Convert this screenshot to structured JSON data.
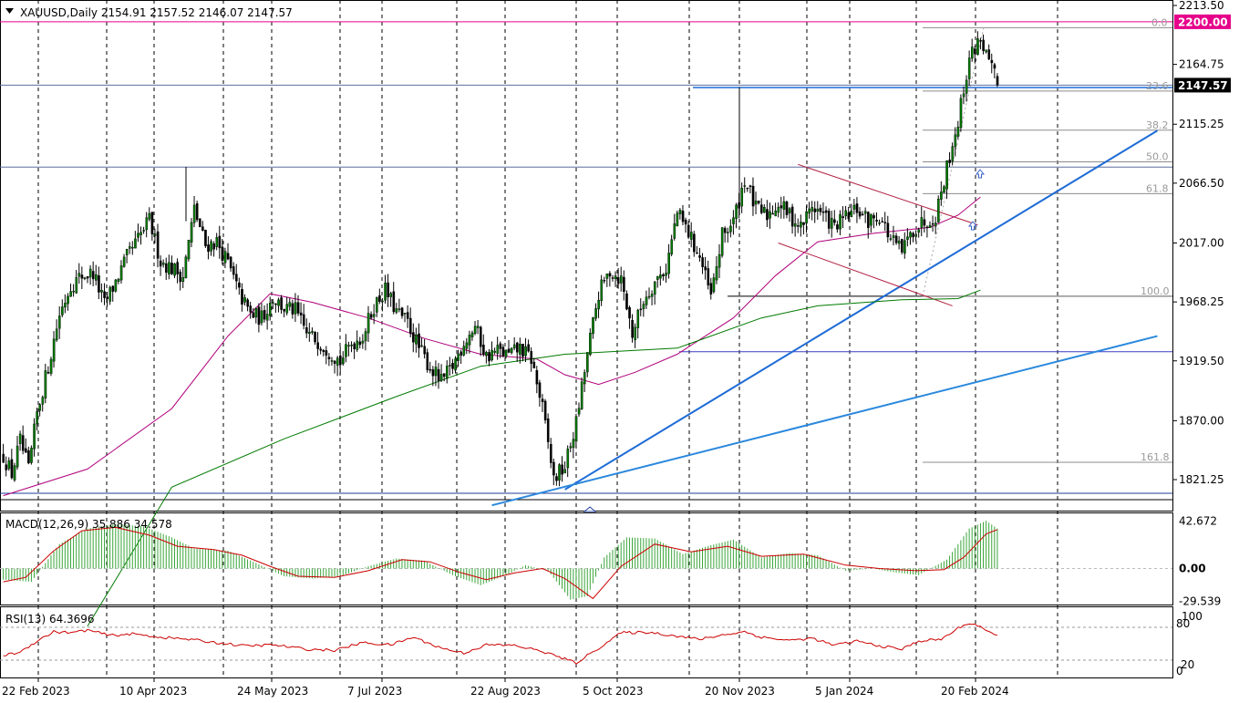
{
  "symbol_header": {
    "menu_icon": "triangle-down-icon",
    "text": "XAUUSD,Daily  2154.91 2157.52 2146.07 2147.57"
  },
  "chart_data": [
    {
      "type": "candlestick",
      "title": "XAUUSD,Daily",
      "ohlc_last": {
        "open": 2154.91,
        "high": 2157.52,
        "low": 2146.07,
        "close": 2147.57
      },
      "x_tick_labels": [
        "22 Feb 2023",
        "10 Apr 2023",
        "24 May 2023",
        "7 Jul 2023",
        "22 Aug 2023",
        "5 Oct 2023",
        "20 Nov 2023",
        "5 Jan 2024",
        "20 Feb 2024"
      ],
      "y_tick_labels": [
        "2213.50",
        "2164.75",
        "2115.25",
        "2066.50",
        "2017.00",
        "1968.25",
        "1919.50",
        "1870.00",
        "1821.25"
      ],
      "ylim": [
        1808,
        2213.5
      ],
      "price_labels": [
        {
          "text": "2200.00",
          "value": 2200.0,
          "color": "#e6008a"
        },
        {
          "text": "2147.57",
          "value": 2147.57,
          "color": "#000000"
        }
      ],
      "fibonacci": {
        "high": 2195.1,
        "low": 1973.0,
        "levels": [
          {
            "label": "0.0",
            "value": 2195.1
          },
          {
            "label": "23.6",
            "value": 2142.7
          },
          {
            "label": "38.2",
            "value": 2110.3
          },
          {
            "label": "50.0",
            "value": 2084.1
          },
          {
            "label": "61.8",
            "value": 2057.8
          },
          {
            "label": "100.0",
            "value": 1973.0
          },
          {
            "label": "161.8",
            "value": 1835.6
          }
        ]
      },
      "horizontal_lines": [
        2147.57,
        2079.8,
        1973.0,
        1927.0,
        1816.0,
        1810.5
      ],
      "series": [
        {
          "kind": "ohlc",
          "up_color": "#007a00",
          "down_color": "#000000",
          "anchors": [
            [
              0,
              1841
            ],
            [
              3,
              1826
            ],
            [
              6,
              1853
            ],
            [
              9,
              1829
            ],
            [
              12,
              1876
            ],
            [
              16,
              1915
            ],
            [
              20,
              1958
            ],
            [
              24,
              1982
            ],
            [
              28,
              1990
            ],
            [
              32,
              1992
            ],
            [
              36,
              1966
            ],
            [
              40,
              1985
            ],
            [
              44,
              2005
            ],
            [
              48,
              2020
            ],
            [
              52,
              2036
            ],
            [
              56,
              2002
            ],
            [
              60,
              1996
            ],
            [
              64,
              1990
            ],
            [
              68,
              2045
            ],
            [
              72,
              2015
            ],
            [
              76,
              2018
            ],
            [
              80,
              2000
            ],
            [
              84,
              1975
            ],
            [
              88,
              1958
            ],
            [
              92,
              1955
            ],
            [
              96,
              1972
            ],
            [
              100,
              1963
            ],
            [
              104,
              1961
            ],
            [
              108,
              1942
            ],
            [
              112,
              1936
            ],
            [
              116,
              1928
            ],
            [
              120,
              1919
            ],
            [
              124,
              1934
            ],
            [
              128,
              1940
            ],
            [
              132,
              1965
            ],
            [
              136,
              1978
            ],
            [
              140,
              1960
            ],
            [
              144,
              1951
            ],
            [
              148,
              1930
            ],
            [
              152,
              1914
            ],
            [
              156,
              1902
            ],
            [
              160,
              1915
            ],
            [
              164,
              1935
            ],
            [
              168,
              1948
            ],
            [
              172,
              1923
            ],
            [
              176,
              1928
            ],
            [
              180,
              1924
            ],
            [
              184,
              1930
            ],
            [
              188,
              1921
            ],
            [
              192,
              1880
            ],
            [
              196,
              1822
            ],
            [
              200,
              1832
            ],
            [
              204,
              1868
            ],
            [
              208,
              1925
            ],
            [
              212,
              1975
            ],
            [
              216,
              1994
            ],
            [
              220,
              1987
            ],
            [
              224,
              1942
            ],
            [
              228,
              1970
            ],
            [
              232,
              1985
            ],
            [
              236,
              1996
            ],
            [
              240,
              2042
            ],
            [
              244,
              2025
            ],
            [
              248,
              2005
            ],
            [
              252,
              1972
            ],
            [
              256,
              2023
            ],
            [
              260,
              2035
            ],
            [
              264,
              2070
            ],
            [
              268,
              2045
            ],
            [
              272,
              2040
            ],
            [
              276,
              2050
            ],
            [
              280,
              2040
            ],
            [
              284,
              2030
            ],
            [
              288,
              2048
            ],
            [
              292,
              2040
            ],
            [
              296,
              2030
            ],
            [
              300,
              2038
            ],
            [
              304,
              2045
            ],
            [
              308,
              2035
            ],
            [
              312,
              2040
            ],
            [
              316,
              2020
            ],
            [
              320,
              2010
            ],
            [
              324,
              2028
            ],
            [
              328,
              2035
            ],
            [
              332,
              2040
            ],
            [
              336,
              2080
            ],
            [
              340,
              2118
            ],
            [
              344,
              2170
            ],
            [
              348,
              2187
            ],
            [
              351,
              2165
            ],
            [
              353,
              2154.91
            ],
            [
              354,
              2147.57
            ]
          ]
        },
        {
          "kind": "line",
          "color": "#b0007c",
          "points": [
            [
              0,
              1808
            ],
            [
              30,
              1830
            ],
            [
              60,
              1880
            ],
            [
              80,
              1940
            ],
            [
              95,
              1975
            ],
            [
              110,
              1968
            ],
            [
              130,
              1955
            ],
            [
              150,
              1938
            ],
            [
              170,
              1925
            ],
            [
              190,
              1921
            ],
            [
              200,
              1908
            ],
            [
              212,
              1900
            ],
            [
              225,
              1910
            ],
            [
              240,
              1925
            ],
            [
              260,
              1955
            ],
            [
              275,
              1990
            ],
            [
              290,
              2018
            ],
            [
              310,
              2025
            ],
            [
              330,
              2030
            ],
            [
              340,
              2040
            ],
            [
              348,
              2055
            ]
          ]
        },
        {
          "kind": "line",
          "color": "#007a00",
          "points": [
            [
              30,
              1700
            ],
            [
              60,
              1815
            ],
            [
              100,
              1855
            ],
            [
              140,
              1890
            ],
            [
              170,
              1915
            ],
            [
              200,
              1925
            ],
            [
              240,
              1930
            ],
            [
              270,
              1955
            ],
            [
              290,
              1965
            ],
            [
              320,
              1970
            ],
            [
              340,
              1971
            ],
            [
              348,
              1978
            ]
          ]
        }
      ],
      "trend_lines": [
        {
          "color": "#1e6bd6",
          "from": [
            200,
            1813
          ],
          "to": [
            411,
            2110
          ]
        },
        {
          "color": "#2a88dd",
          "from": [
            174,
            1800
          ],
          "to": [
            411,
            1940
          ]
        },
        {
          "color": "#b22040",
          "from": [
            283,
            2082
          ],
          "to": [
            347,
            2032
          ]
        },
        {
          "color": "#b22040",
          "from": [
            276,
            2017
          ],
          "to": [
            338,
            1965
          ]
        }
      ],
      "markers": [
        "arrow-up-icon",
        "arrow-up-icon",
        "triangle-up-icon"
      ]
    },
    {
      "type": "bar",
      "title": "MACD(12,26,9) 35.886 34.578",
      "y_tick_labels": [
        "42.672",
        "0.00",
        "-29.539"
      ],
      "ylim": [
        -32,
        48
      ],
      "histogram_color": "#3aa53a",
      "signal_color": "#cc0000",
      "histogram": [
        [
          0,
          -10
        ],
        [
          10,
          -12
        ],
        [
          20,
          22
        ],
        [
          30,
          36
        ],
        [
          40,
          40
        ],
        [
          50,
          38
        ],
        [
          60,
          28
        ],
        [
          68,
          18
        ],
        [
          80,
          16
        ],
        [
          90,
          5
        ],
        [
          100,
          -7
        ],
        [
          110,
          -9
        ],
        [
          120,
          -7
        ],
        [
          130,
          2
        ],
        [
          140,
          9
        ],
        [
          150,
          7
        ],
        [
          160,
          -6
        ],
        [
          170,
          -15
        ],
        [
          180,
          -5
        ],
        [
          186,
          3
        ],
        [
          194,
          -2
        ],
        [
          202,
          -28
        ],
        [
          208,
          -25
        ],
        [
          214,
          10
        ],
        [
          222,
          28
        ],
        [
          232,
          27
        ],
        [
          242,
          13
        ],
        [
          252,
          21
        ],
        [
          260,
          26
        ],
        [
          270,
          10
        ],
        [
          280,
          14
        ],
        [
          290,
          12
        ],
        [
          300,
          -2
        ],
        [
          310,
          0
        ],
        [
          316,
          -3
        ],
        [
          326,
          -6
        ],
        [
          336,
          8
        ],
        [
          344,
          36
        ],
        [
          350,
          43
        ],
        [
          354,
          36
        ]
      ],
      "signal": [
        [
          0,
          -12
        ],
        [
          8,
          -8
        ],
        [
          18,
          16
        ],
        [
          28,
          34
        ],
        [
          40,
          37
        ],
        [
          52,
          30
        ],
        [
          62,
          20
        ],
        [
          75,
          17
        ],
        [
          85,
          12
        ],
        [
          95,
          2
        ],
        [
          105,
          -7
        ],
        [
          118,
          -8
        ],
        [
          130,
          -2
        ],
        [
          142,
          8
        ],
        [
          152,
          6
        ],
        [
          162,
          -3
        ],
        [
          172,
          -10
        ],
        [
          182,
          -4
        ],
        [
          192,
          0
        ],
        [
          200,
          -9
        ],
        [
          210,
          -27
        ],
        [
          220,
          2
        ],
        [
          232,
          22
        ],
        [
          245,
          15
        ],
        [
          258,
          20
        ],
        [
          270,
          11
        ],
        [
          285,
          13
        ],
        [
          300,
          3
        ],
        [
          312,
          0
        ],
        [
          325,
          -2
        ],
        [
          335,
          -1
        ],
        [
          342,
          10
        ],
        [
          350,
          31
        ],
        [
          354,
          35
        ]
      ]
    },
    {
      "type": "line",
      "title": "RSI(13) 64.3696",
      "y_tick_labels": [
        "100",
        "80",
        "20",
        "0"
      ],
      "ylim": [
        0,
        100
      ],
      "levels": [
        80,
        20
      ],
      "color": "#cc0000",
      "values": [
        [
          0,
          28
        ],
        [
          6,
          35
        ],
        [
          12,
          55
        ],
        [
          18,
          72
        ],
        [
          24,
          70
        ],
        [
          30,
          75
        ],
        [
          38,
          65
        ],
        [
          46,
          68
        ],
        [
          56,
          62
        ],
        [
          66,
          58
        ],
        [
          76,
          52
        ],
        [
          86,
          46
        ],
        [
          96,
          48
        ],
        [
          108,
          40
        ],
        [
          118,
          38
        ],
        [
          128,
          52
        ],
        [
          138,
          48
        ],
        [
          146,
          62
        ],
        [
          156,
          42
        ],
        [
          164,
          33
        ],
        [
          172,
          48
        ],
        [
          182,
          47
        ],
        [
          192,
          36
        ],
        [
          200,
          22
        ],
        [
          204,
          15
        ],
        [
          210,
          35
        ],
        [
          220,
          70
        ],
        [
          230,
          71
        ],
        [
          240,
          64
        ],
        [
          248,
          58
        ],
        [
          256,
          66
        ],
        [
          264,
          72
        ],
        [
          270,
          62
        ],
        [
          280,
          56
        ],
        [
          288,
          60
        ],
        [
          296,
          47
        ],
        [
          304,
          55
        ],
        [
          312,
          46
        ],
        [
          320,
          40
        ],
        [
          326,
          55
        ],
        [
          334,
          58
        ],
        [
          340,
          78
        ],
        [
          344,
          88
        ],
        [
          348,
          82
        ],
        [
          351,
          70
        ],
        [
          354,
          64
        ]
      ]
    }
  ]
}
